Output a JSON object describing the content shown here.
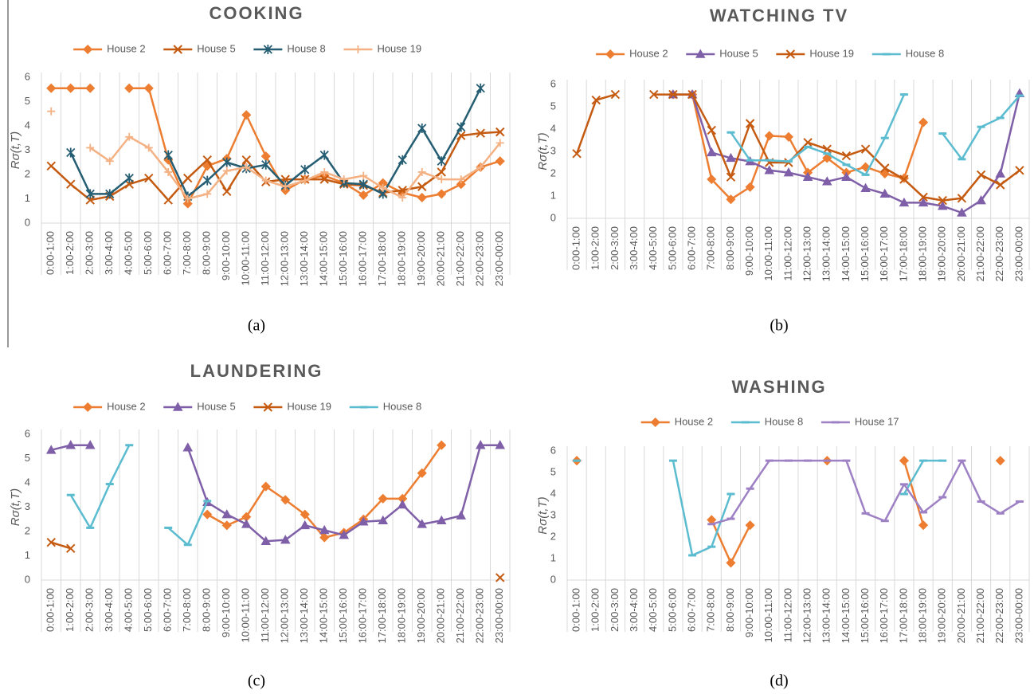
{
  "chart_data": [
    {
      "type": "line",
      "title": "COOKING",
      "caption": "(a)",
      "ylabel": "Rσ(t,T)",
      "categories": [
        "0:00-1:00",
        "1:00-2:00",
        "2:00-3:00",
        "3:00-4:00",
        "4:00-5:00",
        "5:00-6:00",
        "6:00-7:00",
        "7:00-8:00",
        "8:00-9:00",
        "9:00-10:00",
        "10:00-11:00",
        "11:00-12:00",
        "12:00-13:00",
        "13:00-14:00",
        "14:00-15:00",
        "15:00-16:00",
        "16:00-17:00",
        "17:00-18:00",
        "18:00-19:00",
        "19:00-20:00",
        "20:00-21:00",
        "21:00-22:00",
        "22:00-23:00",
        "23:00-00:00"
      ],
      "ylim": [
        0,
        6
      ],
      "yticks": [
        0,
        1,
        2,
        3,
        4,
        5,
        6
      ],
      "grid": true,
      "series": [
        {
          "name": "House 2",
          "color": "#ed7d31",
          "marker": "diamond",
          "values": [
            5.55,
            5.55,
            5.55,
            null,
            5.55,
            5.55,
            2.6,
            0.8,
            2.35,
            2.65,
            4.45,
            2.75,
            1.35,
            1.8,
            1.95,
            1.65,
            1.15,
            1.65,
            1.25,
            1.05,
            1.2,
            1.6,
            2.3,
            2.55
          ]
        },
        {
          "name": "House 5",
          "color": "#c55a11",
          "marker": "x",
          "values": [
            2.35,
            1.6,
            0.95,
            1.1,
            1.6,
            1.85,
            0.95,
            1.85,
            2.6,
            1.3,
            2.6,
            1.7,
            1.8,
            1.8,
            1.8,
            1.6,
            1.55,
            1.25,
            1.35,
            1.5,
            2.1,
            3.6,
            3.7,
            3.75
          ]
        },
        {
          "name": "House 8",
          "color": "#255e73",
          "marker": "asterisk",
          "values": [
            null,
            2.9,
            1.2,
            1.2,
            1.85,
            null,
            2.8,
            1.1,
            1.75,
            2.5,
            2.25,
            2.4,
            1.55,
            2.2,
            2.8,
            1.65,
            1.6,
            1.2,
            2.6,
            3.9,
            2.55,
            3.95,
            5.55,
            null
          ]
        },
        {
          "name": "House 19",
          "color": "#f4b183",
          "marker": "plus",
          "values": [
            4.6,
            null,
            3.1,
            2.55,
            3.55,
            3.1,
            2.1,
            1.0,
            1.2,
            2.15,
            2.3,
            1.75,
            1.5,
            1.75,
            2.1,
            1.8,
            1.95,
            1.45,
            1.05,
            2.1,
            1.8,
            1.8,
            2.3,
            3.3
          ]
        }
      ]
    },
    {
      "type": "line",
      "title": "WATCHING TV",
      "caption": "(b)",
      "ylabel": "Rσ(t,T)",
      "categories": [
        "0:00-1:00",
        "1:00-2:00",
        "2:00-3:00",
        "3:00-4:00",
        "4:00-5:00",
        "5:00-6:00",
        "6:00-7:00",
        "7:00-8:00",
        "8:00-9:00",
        "9:00-10:00",
        "10:00-11:00",
        "11:00-12:00",
        "12:00-13:00",
        "13:00-14:00",
        "14:00-15:00",
        "15:00-16:00",
        "16:00-17:00",
        "17:00-18:00",
        "18:00-19:00",
        "19:00-20:00",
        "20:00-21:00",
        "21:00-22:00",
        "22:00-23:00",
        "23:00-00:00"
      ],
      "ylim": [
        0,
        6
      ],
      "yticks": [
        0,
        1,
        2,
        3,
        4,
        5,
        6
      ],
      "grid": true,
      "series": [
        {
          "name": "House 2",
          "color": "#ed7d31",
          "marker": "diamond",
          "values": [
            null,
            null,
            null,
            null,
            null,
            5.55,
            5.55,
            1.75,
            0.85,
            1.4,
            3.7,
            3.65,
            2.05,
            2.7,
            2.05,
            2.3,
            2.0,
            1.8,
            4.3,
            null,
            null,
            null,
            null,
            null
          ]
        },
        {
          "name": "House 5",
          "color": "#7f5fa8",
          "marker": "triangle",
          "values": [
            null,
            null,
            null,
            null,
            null,
            5.55,
            5.55,
            2.95,
            2.7,
            2.55,
            2.15,
            2.05,
            1.85,
            1.65,
            1.85,
            1.35,
            1.1,
            0.7,
            0.7,
            0.55,
            0.25,
            0.8,
            2.0,
            5.6
          ]
        },
        {
          "name": "House 19",
          "color": "#c55a11",
          "marker": "x",
          "values": [
            2.9,
            5.3,
            5.55,
            null,
            5.55,
            5.55,
            5.55,
            3.95,
            1.85,
            4.25,
            2.5,
            2.5,
            3.4,
            3.1,
            2.8,
            3.1,
            2.25,
            1.75,
            0.95,
            0.8,
            0.9,
            1.95,
            1.5,
            2.15
          ]
        },
        {
          "name": "House 8",
          "color": "#5bbcd0",
          "marker": "dash",
          "values": [
            null,
            null,
            null,
            null,
            null,
            null,
            null,
            null,
            3.85,
            2.6,
            2.6,
            2.55,
            3.2,
            2.9,
            2.4,
            1.95,
            3.6,
            5.55,
            null,
            3.8,
            2.65,
            4.1,
            4.5,
            5.5
          ]
        }
      ]
    },
    {
      "type": "line",
      "title": "LAUNDERING",
      "caption": "(c)",
      "ylabel": "Rσ(t,T)",
      "categories": [
        "0:00-1:00",
        "1:00-2:00",
        "2:00-3:00",
        "3:00-4:00",
        "4:00-5:00",
        "5:00-6:00",
        "6:00-7:00",
        "7:00-8:00",
        "8:00-9:00",
        "9:00-10:00",
        "10:00-11:00",
        "11:00-12:00",
        "12:00-13:00",
        "13:00-14:00",
        "14:00-15:00",
        "15:00-16:00",
        "16:00-17:00",
        "17:00-18:00",
        "18:00-19:00",
        "19:00-20:00",
        "20:00-21:00",
        "21:00-22:00",
        "22:00-23:00",
        "23:00-00:00"
      ],
      "ylim": [
        0,
        6
      ],
      "yticks": [
        0,
        1,
        2,
        3,
        4,
        5,
        6
      ],
      "grid": true,
      "series": [
        {
          "name": "House 2",
          "color": "#ed7d31",
          "marker": "diamond",
          "values": [
            null,
            null,
            null,
            null,
            null,
            null,
            null,
            null,
            2.7,
            2.25,
            2.6,
            3.85,
            3.3,
            2.7,
            1.75,
            1.95,
            2.5,
            3.35,
            3.35,
            4.4,
            5.55,
            null,
            null,
            null
          ]
        },
        {
          "name": "House 5",
          "color": "#7f5fa8",
          "marker": "triangle",
          "values": [
            5.35,
            5.55,
            5.55,
            null,
            null,
            null,
            null,
            5.45,
            3.2,
            2.7,
            2.3,
            1.6,
            1.65,
            2.25,
            2.05,
            1.85,
            2.4,
            2.45,
            3.1,
            2.3,
            2.45,
            2.65,
            5.55,
            5.55
          ]
        },
        {
          "name": "House 19",
          "color": "#c55a11",
          "marker": "x",
          "values": [
            1.55,
            1.3,
            null,
            null,
            null,
            null,
            null,
            null,
            null,
            null,
            null,
            null,
            null,
            null,
            null,
            null,
            null,
            null,
            null,
            null,
            null,
            null,
            null,
            0.1
          ]
        },
        {
          "name": "House 8",
          "color": "#5bbcd0",
          "marker": "dash",
          "values": [
            null,
            3.5,
            2.15,
            3.95,
            5.55,
            null,
            2.15,
            1.45,
            3.25,
            null,
            null,
            null,
            null,
            null,
            null,
            null,
            null,
            null,
            null,
            null,
            null,
            null,
            null,
            null
          ]
        }
      ]
    },
    {
      "type": "line",
      "title": "WASHING",
      "caption": "(d)",
      "ylabel": "Rσ(t,T)",
      "categories": [
        "0:00-1:00",
        "1:00-2:00",
        "2:00-3:00",
        "3:00-4:00",
        "4:00-5:00",
        "5:00-6:00",
        "6:00-7:00",
        "7:00-8:00",
        "8:00-9:00",
        "9:00-10:00",
        "10:00-11:00",
        "11:00-12:00",
        "12:00-13:00",
        "13:00-14:00",
        "14:00-15:00",
        "15:00-16:00",
        "16:00-17:00",
        "17:00-18:00",
        "18:00-19:00",
        "19:00-20:00",
        "20:00-21:00",
        "21:00-22:00",
        "22:00-23:00",
        "23:00-00:00"
      ],
      "ylim": [
        0,
        6
      ],
      "yticks": [
        0,
        1,
        2,
        3,
        4,
        5,
        6
      ],
      "grid": true,
      "series": [
        {
          "name": "House 2",
          "color": "#ed7d31",
          "marker": "diamond",
          "values": [
            5.55,
            null,
            null,
            null,
            null,
            null,
            null,
            2.8,
            0.8,
            2.55,
            null,
            null,
            null,
            5.55,
            null,
            null,
            null,
            5.55,
            2.55,
            null,
            null,
            null,
            5.55,
            null
          ]
        },
        {
          "name": "House 8",
          "color": "#5bbcd0",
          "marker": "dash",
          "values": [
            5.55,
            null,
            null,
            null,
            null,
            5.55,
            1.15,
            1.55,
            4.0,
            null,
            null,
            null,
            null,
            null,
            null,
            null,
            null,
            4.0,
            5.55,
            5.55,
            null,
            null,
            null,
            null
          ]
        },
        {
          "name": "House 17",
          "color": "#9e80c4",
          "marker": "dash",
          "values": [
            null,
            null,
            null,
            null,
            null,
            null,
            null,
            2.6,
            2.85,
            4.25,
            5.55,
            5.55,
            5.55,
            5.55,
            5.55,
            3.1,
            2.75,
            4.45,
            3.15,
            3.85,
            5.55,
            3.65,
            3.1,
            3.65
          ]
        }
      ]
    }
  ]
}
